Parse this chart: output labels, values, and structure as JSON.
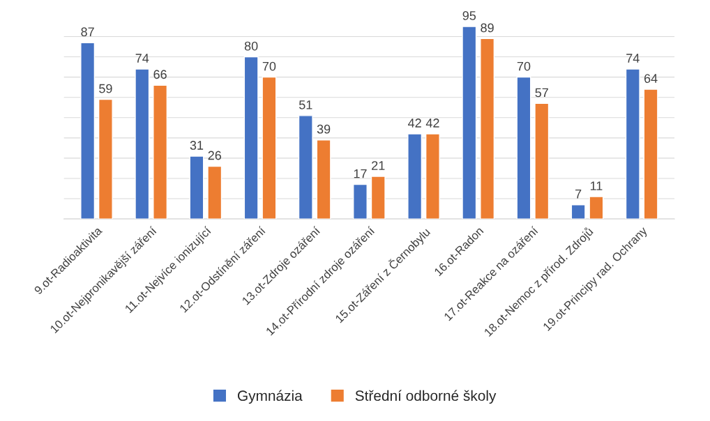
{
  "chart_data": {
    "type": "bar",
    "categories": [
      "9.ot-Radioaktivita",
      "10.ot-Nejpronikavější záření",
      "11.ot-Nejvíce ionizující",
      "12.ot-Odstínění záření",
      "13.ot-Zdroje ozáření",
      "14.ot-Přírodní zdroje ozáření",
      "15.ot-Záření z Černobylu",
      "16.ot-Radon",
      "17.ot-Reakce na ozáření",
      "18.ot-Nemoc z přírod. Zdrojů",
      "19.ot-Principy rad. Ochrany"
    ],
    "series": [
      {
        "name": "Gymnázia",
        "color": "#4472c4",
        "values": [
          87,
          74,
          31,
          80,
          51,
          17,
          42,
          95,
          70,
          7,
          74
        ]
      },
      {
        "name": "Střední odborné školy",
        "color": "#ed7d31",
        "values": [
          59,
          66,
          26,
          70,
          39,
          21,
          42,
          89,
          57,
          11,
          64
        ]
      }
    ],
    "yticks": [
      {
        "value": 0,
        "label": null
      },
      {
        "value": 10,
        "label": null
      },
      {
        "value": 20,
        "label": null
      },
      {
        "value": 30,
        "label": null
      },
      {
        "value": 40,
        "label": null
      },
      {
        "value": 50,
        "label": null
      },
      {
        "value": 60,
        "label": null
      },
      {
        "value": 70,
        "label": null
      },
      {
        "value": 80,
        "label": null
      },
      {
        "value": 90,
        "label": null
      }
    ],
    "tick_labels": "x",
    "grid": "y",
    "data_labels": true,
    "legend": "bottom"
  }
}
